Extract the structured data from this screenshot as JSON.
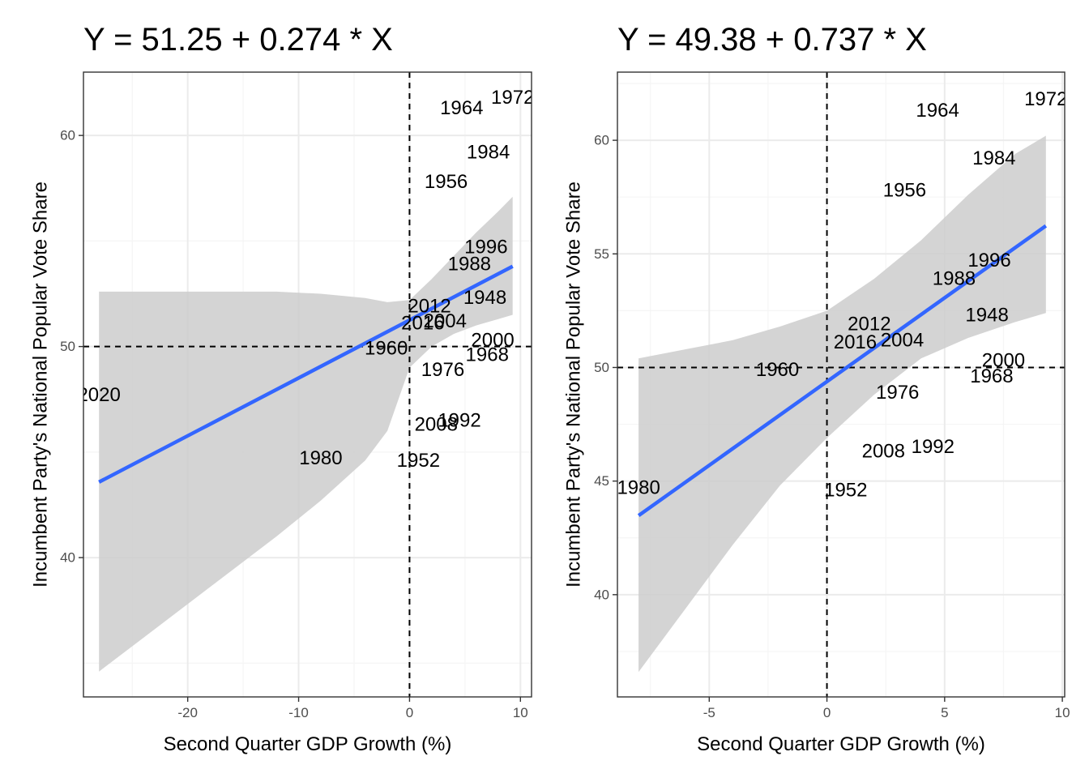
{
  "chart_data": [
    {
      "type": "scatter",
      "title": "Y = 51.25 + 0.274 * X",
      "xlabel": "Second Quarter GDP Growth (%)",
      "ylabel": "Incumbent Party's National Popular Vote Share",
      "xlim": [
        -29.4,
        11.0
      ],
      "ylim": [
        33.4,
        63.0
      ],
      "xticks": [
        -20,
        -10,
        0,
        10
      ],
      "xtick_labels": [
        "-20",
        "-10",
        "0",
        "10"
      ],
      "yticks": [
        40,
        50,
        60
      ],
      "ytick_labels": [
        "40",
        "50",
        "60"
      ],
      "grid": true,
      "reference_lines": {
        "x": 0,
        "y": 50
      },
      "fit_line": {
        "intercept": 51.25,
        "slope": 0.274,
        "x_range": [
          -28.0,
          9.3
        ]
      },
      "confidence_band": {
        "x": [
          -28.0,
          -24.0,
          -20.0,
          -16.0,
          -12.0,
          -8.0,
          -4.0,
          -2.0,
          0.0,
          2.0,
          4.0,
          6.0,
          8.0,
          9.3
        ],
        "upper": [
          52.6,
          52.6,
          52.6,
          52.6,
          52.6,
          52.5,
          52.3,
          52.1,
          52.2,
          53.2,
          54.3,
          55.4,
          56.4,
          57.1
        ],
        "lower": [
          34.6,
          36.2,
          37.8,
          39.4,
          41.0,
          42.7,
          44.6,
          46.0,
          49.0,
          50.0,
          50.6,
          51.0,
          51.3,
          51.5
        ]
      },
      "points": [
        {
          "label": "1948",
          "x": 6.8,
          "y": 52.3
        },
        {
          "label": "1952",
          "x": 0.8,
          "y": 44.6
        },
        {
          "label": "1956",
          "x": 3.3,
          "y": 57.8
        },
        {
          "label": "1960",
          "x": -2.1,
          "y": 49.9
        },
        {
          "label": "1964",
          "x": 4.7,
          "y": 61.3
        },
        {
          "label": "1968",
          "x": 7.0,
          "y": 49.6
        },
        {
          "label": "1972",
          "x": 9.3,
          "y": 61.8
        },
        {
          "label": "1976",
          "x": 3.0,
          "y": 48.9
        },
        {
          "label": "1980",
          "x": -8.0,
          "y": 44.7
        },
        {
          "label": "1984",
          "x": 7.1,
          "y": 59.2
        },
        {
          "label": "1988",
          "x": 5.4,
          "y": 53.9
        },
        {
          "label": "1992",
          "x": 4.5,
          "y": 46.5
        },
        {
          "label": "1996",
          "x": 6.9,
          "y": 54.7
        },
        {
          "label": "2000",
          "x": 7.5,
          "y": 50.3
        },
        {
          "label": "2004",
          "x": 3.2,
          "y": 51.2
        },
        {
          "label": "2008",
          "x": 2.4,
          "y": 46.3
        },
        {
          "label": "2012",
          "x": 1.8,
          "y": 51.9
        },
        {
          "label": "2016",
          "x": 1.2,
          "y": 51.1
        },
        {
          "label": "2020",
          "x": -28.0,
          "y": 47.7
        }
      ]
    },
    {
      "type": "scatter",
      "title": "Y = 49.38 + 0.737 * X",
      "xlabel": "Second Quarter GDP Growth (%)",
      "ylabel": "Incumbent Party's National Popular Vote Share",
      "xlim": [
        -8.9,
        10.1
      ],
      "ylim": [
        35.5,
        63.0
      ],
      "xticks": [
        -5,
        0,
        5,
        10
      ],
      "xtick_labels": [
        "-5",
        "0",
        "5",
        "10"
      ],
      "yticks": [
        40,
        45,
        50,
        55,
        60
      ],
      "ytick_labels": [
        "40",
        "45",
        "50",
        "55",
        "60"
      ],
      "grid": true,
      "reference_lines": {
        "x": 0,
        "y": 50
      },
      "fit_line": {
        "intercept": 49.38,
        "slope": 0.737,
        "x_range": [
          -8.0,
          9.3
        ]
      },
      "confidence_band": {
        "x": [
          -8.0,
          -6.0,
          -4.0,
          -2.0,
          0.0,
          2.0,
          4.0,
          6.0,
          8.0,
          9.3
        ],
        "upper": [
          50.4,
          50.8,
          51.2,
          51.8,
          52.5,
          53.9,
          55.6,
          57.6,
          59.4,
          60.2
        ],
        "lower": [
          36.6,
          39.4,
          42.2,
          44.8,
          46.9,
          48.8,
          50.4,
          51.3,
          52.0,
          52.4
        ]
      },
      "points": [
        {
          "label": "1948",
          "x": 6.8,
          "y": 52.3
        },
        {
          "label": "1952",
          "x": 0.8,
          "y": 44.6
        },
        {
          "label": "1956",
          "x": 3.3,
          "y": 57.8
        },
        {
          "label": "1960",
          "x": -2.1,
          "y": 49.9
        },
        {
          "label": "1964",
          "x": 4.7,
          "y": 61.3
        },
        {
          "label": "1968",
          "x": 7.0,
          "y": 49.6
        },
        {
          "label": "1972",
          "x": 9.3,
          "y": 61.8
        },
        {
          "label": "1976",
          "x": 3.0,
          "y": 48.9
        },
        {
          "label": "1980",
          "x": -8.0,
          "y": 44.7
        },
        {
          "label": "1984",
          "x": 7.1,
          "y": 59.2
        },
        {
          "label": "1988",
          "x": 5.4,
          "y": 53.9
        },
        {
          "label": "1992",
          "x": 4.5,
          "y": 46.5
        },
        {
          "label": "1996",
          "x": 6.9,
          "y": 54.7
        },
        {
          "label": "2000",
          "x": 7.5,
          "y": 50.3
        },
        {
          "label": "2004",
          "x": 3.2,
          "y": 51.2
        },
        {
          "label": "2008",
          "x": 2.4,
          "y": 46.3
        },
        {
          "label": "2012",
          "x": 1.8,
          "y": 51.9
        },
        {
          "label": "2016",
          "x": 1.2,
          "y": 51.1
        }
      ]
    }
  ],
  "colors": {
    "fit_line": "#3366FF",
    "band": "#CCCCCC",
    "grid_major": "#EBEBEB",
    "grid_minor": "#F5F5F5",
    "panel_border": "#333333",
    "reference": "#000000"
  }
}
